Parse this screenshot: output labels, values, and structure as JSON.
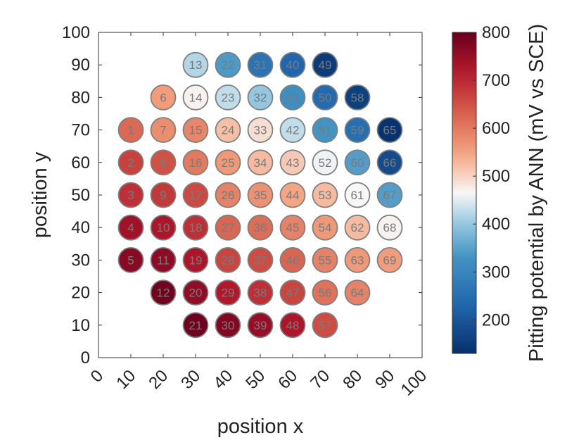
{
  "chart_data": {
    "type": "scatter",
    "title": "",
    "xlabel": "position x",
    "ylabel": "position y",
    "xlim": [
      0,
      100
    ],
    "ylim": [
      0,
      100
    ],
    "xticks": [
      0,
      10,
      20,
      30,
      40,
      50,
      60,
      70,
      80,
      90,
      100
    ],
    "yticks": [
      0,
      10,
      20,
      30,
      40,
      50,
      60,
      70,
      80,
      90,
      100
    ],
    "grid": false,
    "colorbar": {
      "label": "Pitting potential by ANN (mV vs SCE)",
      "range": [
        130,
        800
      ],
      "ticks": [
        200,
        300,
        400,
        500,
        600,
        700,
        800
      ],
      "colormap": "blue-white-red",
      "color_low": "#08306b",
      "color_mid": "#f7f7f7",
      "color_high": "#67001f"
    },
    "points": [
      {
        "id": "1",
        "x": 10,
        "y": 70,
        "value": 620
      },
      {
        "id": "2",
        "x": 10,
        "y": 60,
        "value": 670
      },
      {
        "id": "3",
        "x": 10,
        "y": 50,
        "value": 690
      },
      {
        "id": "4",
        "x": 10,
        "y": 40,
        "value": 740
      },
      {
        "id": "5",
        "x": 10,
        "y": 30,
        "value": 765
      },
      {
        "id": "6",
        "x": 20,
        "y": 80,
        "value": 555
      },
      {
        "id": "7",
        "x": 20,
        "y": 70,
        "value": 575
      },
      {
        "id": "8",
        "x": 20,
        "y": 60,
        "value": 650
      },
      {
        "id": "9",
        "x": 20,
        "y": 50,
        "value": 680
      },
      {
        "id": "10",
        "x": 20,
        "y": 40,
        "value": 725
      },
      {
        "id": "11",
        "x": 20,
        "y": 30,
        "value": 760
      },
      {
        "id": "12",
        "x": 20,
        "y": 20,
        "value": 790
      },
      {
        "id": "13",
        "x": 30,
        "y": 90,
        "value": 420
      },
      {
        "id": "14",
        "x": 30,
        "y": 80,
        "value": 470
      },
      {
        "id": "15",
        "x": 30,
        "y": 70,
        "value": 585
      },
      {
        "id": "16",
        "x": 30,
        "y": 60,
        "value": 600
      },
      {
        "id": "17",
        "x": 30,
        "y": 50,
        "value": 660
      },
      {
        "id": "18",
        "x": 30,
        "y": 40,
        "value": 690
      },
      {
        "id": "19",
        "x": 30,
        "y": 30,
        "value": 725
      },
      {
        "id": "20",
        "x": 30,
        "y": 20,
        "value": 755
      },
      {
        "id": "21",
        "x": 30,
        "y": 10,
        "value": 795
      },
      {
        "id": "22",
        "x": 40,
        "y": 90,
        "value": 340
      },
      {
        "id": "23",
        "x": 40,
        "y": 80,
        "value": 430
      },
      {
        "id": "24",
        "x": 40,
        "y": 70,
        "value": 520
      },
      {
        "id": "25",
        "x": 40,
        "y": 60,
        "value": 560
      },
      {
        "id": "26",
        "x": 40,
        "y": 50,
        "value": 590
      },
      {
        "id": "27",
        "x": 40,
        "y": 40,
        "value": 625
      },
      {
        "id": "28",
        "x": 40,
        "y": 30,
        "value": 665
      },
      {
        "id": "29",
        "x": 40,
        "y": 20,
        "value": 720
      },
      {
        "id": "30",
        "x": 40,
        "y": 10,
        "value": 770
      },
      {
        "id": "31",
        "x": 50,
        "y": 90,
        "value": 260
      },
      {
        "id": "32",
        "x": 50,
        "y": 80,
        "value": 400
      },
      {
        "id": "33",
        "x": 50,
        "y": 70,
        "value": 490
      },
      {
        "id": "34",
        "x": 50,
        "y": 60,
        "value": 525
      },
      {
        "id": "35",
        "x": 50,
        "y": 50,
        "value": 570
      },
      {
        "id": "36",
        "x": 50,
        "y": 40,
        "value": 615
      },
      {
        "id": "37",
        "x": 50,
        "y": 30,
        "value": 655
      },
      {
        "id": "38",
        "x": 50,
        "y": 20,
        "value": 690
      },
      {
        "id": "39",
        "x": 50,
        "y": 10,
        "value": 750
      },
      {
        "id": "40",
        "x": 60,
        "y": 90,
        "value": 230
      },
      {
        "id": "41",
        "x": 60,
        "y": 80,
        "value": 320
      },
      {
        "id": "42",
        "x": 60,
        "y": 70,
        "value": 430
      },
      {
        "id": "43",
        "x": 60,
        "y": 60,
        "value": 510
      },
      {
        "id": "44",
        "x": 60,
        "y": 50,
        "value": 545
      },
      {
        "id": "45",
        "x": 60,
        "y": 40,
        "value": 590
      },
      {
        "id": "46",
        "x": 60,
        "y": 30,
        "value": 625
      },
      {
        "id": "47",
        "x": 60,
        "y": 20,
        "value": 665
      },
      {
        "id": "48",
        "x": 60,
        "y": 10,
        "value": 725
      },
      {
        "id": "49",
        "x": 70,
        "y": 90,
        "value": 150
      },
      {
        "id": "50",
        "x": 70,
        "y": 80,
        "value": 240
      },
      {
        "id": "51",
        "x": 70,
        "y": 70,
        "value": 330
      },
      {
        "id": "52",
        "x": 70,
        "y": 60,
        "value": 460
      },
      {
        "id": "53",
        "x": 70,
        "y": 50,
        "value": 525
      },
      {
        "id": "54",
        "x": 70,
        "y": 40,
        "value": 560
      },
      {
        "id": "55",
        "x": 70,
        "y": 30,
        "value": 590
      },
      {
        "id": "56",
        "x": 70,
        "y": 20,
        "value": 610
      },
      {
        "id": "57",
        "x": 70,
        "y": 10,
        "value": 655
      },
      {
        "id": "58",
        "x": 80,
        "y": 80,
        "value": 160
      },
      {
        "id": "59",
        "x": 80,
        "y": 70,
        "value": 250
      },
      {
        "id": "60",
        "x": 80,
        "y": 60,
        "value": 345
      },
      {
        "id": "61",
        "x": 80,
        "y": 50,
        "value": 465
      },
      {
        "id": "62",
        "x": 80,
        "y": 40,
        "value": 525
      },
      {
        "id": "63",
        "x": 80,
        "y": 30,
        "value": 560
      },
      {
        "id": "64",
        "x": 80,
        "y": 20,
        "value": 590
      },
      {
        "id": "65",
        "x": 90,
        "y": 70,
        "value": 135
      },
      {
        "id": "66",
        "x": 90,
        "y": 60,
        "value": 180
      },
      {
        "id": "67",
        "x": 90,
        "y": 50,
        "value": 345
      },
      {
        "id": "68",
        "x": 90,
        "y": 40,
        "value": 470
      },
      {
        "id": "69",
        "x": 90,
        "y": 30,
        "value": 555
      }
    ]
  }
}
